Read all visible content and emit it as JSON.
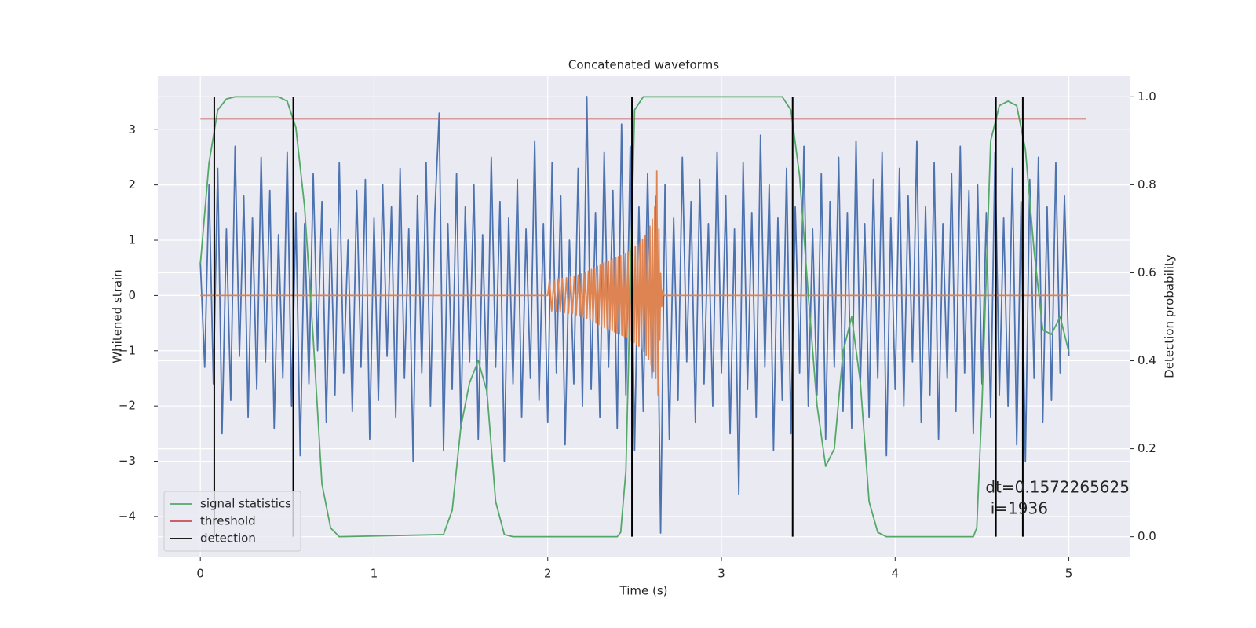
{
  "chart_data": {
    "type": "line",
    "title": "Concatenated waveforms",
    "xlabel": "Time (s)",
    "ylabel": "Whitened strain",
    "y2label": "Detection probability",
    "xlim": [
      -0.245,
      5.35
    ],
    "ylim": [
      -4.74,
      3.97
    ],
    "y2lim": [
      -0.047,
      1.047
    ],
    "xticks": [
      0,
      1,
      2,
      3,
      4,
      5
    ],
    "yticks": [
      {
        "value": -4,
        "label": "−4"
      },
      {
        "value": -3,
        "label": "−3"
      },
      {
        "value": -2,
        "label": "−2"
      },
      {
        "value": -1,
        "label": "−1"
      },
      0,
      1,
      2,
      3
    ],
    "y2ticks": [
      {
        "value": 0,
        "label": "0.0"
      },
      0.2,
      0.4,
      0.6,
      0.8,
      {
        "value": 1,
        "label": "1.0"
      }
    ],
    "grid": true,
    "legend": "lower left",
    "annotation": {
      "lines": [
        "dt=0.1572265625",
        " i=1936"
      ],
      "x": 4.52,
      "y2": 0.11
    },
    "series": [
      {
        "color": "#4c72b0",
        "x": [
          0,
          0.025,
          0.05,
          0.075,
          0.1,
          0.125,
          0.15,
          0.175,
          0.2,
          0.225,
          0.25,
          0.275,
          0.3,
          0.325,
          0.35,
          0.375,
          0.4,
          0.425,
          0.45,
          0.475,
          0.5,
          0.525,
          0.55,
          0.575,
          0.6,
          0.625,
          0.65,
          0.675,
          0.7,
          0.725,
          0.75,
          0.775,
          0.8,
          0.825,
          0.85,
          0.875,
          0.9,
          0.925,
          0.95,
          0.975,
          1,
          1.025,
          1.05,
          1.075,
          1.1,
          1.125,
          1.15,
          1.175,
          1.2,
          1.225,
          1.25,
          1.275,
          1.3,
          1.325,
          1.35,
          1.375,
          1.4,
          1.425,
          1.45,
          1.475,
          1.5,
          1.525,
          1.55,
          1.575,
          1.6,
          1.625,
          1.65,
          1.675,
          1.7,
          1.725,
          1.75,
          1.775,
          1.8,
          1.825,
          1.85,
          1.875,
          1.9,
          1.925,
          1.95,
          1.975,
          2,
          2.025,
          2.05,
          2.075,
          2.1,
          2.125,
          2.15,
          2.175,
          2.2,
          2.225,
          2.25,
          2.275,
          2.3,
          2.325,
          2.35,
          2.375,
          2.4,
          2.425,
          2.45,
          2.475,
          2.5,
          2.525,
          2.55,
          2.575,
          2.6,
          2.625,
          2.65,
          2.675,
          2.7,
          2.725,
          2.75,
          2.775,
          2.8,
          2.825,
          2.85,
          2.875,
          2.9,
          2.925,
          2.95,
          2.975,
          3,
          3.025,
          3.05,
          3.075,
          3.1,
          3.125,
          3.15,
          3.175,
          3.2,
          3.225,
          3.25,
          3.275,
          3.3,
          3.325,
          3.35,
          3.375,
          3.4,
          3.425,
          3.45,
          3.475,
          3.5,
          3.525,
          3.55,
          3.575,
          3.6,
          3.625,
          3.65,
          3.675,
          3.7,
          3.725,
          3.75,
          3.775,
          3.8,
          3.825,
          3.85,
          3.875,
          3.9,
          3.925,
          3.95,
          3.975,
          4,
          4.025,
          4.05,
          4.075,
          4.1,
          4.125,
          4.15,
          4.175,
          4.2,
          4.225,
          4.25,
          4.275,
          4.3,
          4.325,
          4.35,
          4.375,
          4.4,
          4.425,
          4.45,
          4.475,
          4.5,
          4.525,
          4.55,
          4.575,
          4.6,
          4.625,
          4.65,
          4.675,
          4.7,
          4.725,
          4.75,
          4.775,
          4.8,
          4.825,
          4.85,
          4.875,
          4.9,
          4.925,
          4.95,
          4.975,
          5
        ],
        "values": [
          0.6,
          -1.3,
          2.0,
          -1.6,
          2.3,
          -2.5,
          1.2,
          -1.9,
          2.7,
          -1.1,
          1.8,
          -2.2,
          1.4,
          -1.7,
          2.5,
          -1.2,
          1.9,
          -2.4,
          1.1,
          -1.5,
          2.6,
          -2.0,
          1.5,
          -2.9,
          1.3,
          -1.6,
          2.2,
          -1.0,
          1.7,
          -2.3,
          1.2,
          -1.8,
          2.4,
          -1.4,
          1.0,
          -2.1,
          1.9,
          -1.3,
          2.1,
          -2.6,
          1.4,
          -1.9,
          2.0,
          -1.1,
          1.6,
          -2.2,
          2.3,
          -1.5,
          1.2,
          -3.0,
          1.8,
          -1.4,
          2.4,
          -2.0,
          1.5,
          3.3,
          -2.8,
          1.3,
          -1.7,
          2.2,
          -2.4,
          1.6,
          -1.2,
          2.0,
          -2.6,
          1.1,
          -1.8,
          2.5,
          -1.3,
          1.7,
          -3.0,
          1.4,
          -1.6,
          2.1,
          -2.2,
          1.2,
          -1.5,
          2.8,
          -1.9,
          1.3,
          -2.3,
          2.4,
          -1.4,
          1.8,
          -2.7,
          1.0,
          -1.6,
          2.3,
          -2.0,
          3.6,
          -1.7,
          1.5,
          -2.2,
          2.6,
          -1.3,
          1.9,
          -2.4,
          3.1,
          -1.8,
          2.7,
          -2.8,
          1.6,
          -2.1,
          2.2,
          -1.5,
          1.8,
          -4.3,
          2.0,
          -2.6,
          1.4,
          -1.9,
          2.5,
          -1.2,
          1.7,
          -2.3,
          2.1,
          -1.6,
          1.3,
          -2.0,
          2.6,
          -1.4,
          1.8,
          -2.5,
          1.2,
          -3.6,
          2.4,
          -1.7,
          1.5,
          -2.2,
          2.9,
          -1.3,
          2.0,
          -2.8,
          1.4,
          -1.9,
          2.3,
          -2.5,
          1.6,
          -1.4,
          2.7,
          -2.0,
          1.2,
          -1.8,
          2.2,
          -2.6,
          1.7,
          -1.3,
          2.5,
          -2.1,
          1.5,
          -2.4,
          2.8,
          -1.6,
          1.3,
          -2.2,
          2.1,
          -1.5,
          2.6,
          -2.9,
          1.4,
          -1.7,
          2.3,
          -2.0,
          1.8,
          -1.2,
          2.8,
          -2.3,
          1.6,
          -1.8,
          2.4,
          -2.6,
          1.3,
          -1.5,
          2.2,
          -2.1,
          2.7,
          -1.4,
          1.9,
          -2.5,
          2.0,
          -1.6,
          1.5,
          -2.2,
          2.6,
          -1.8,
          1.4,
          -2.0,
          2.3,
          -2.7,
          1.7,
          -3.0,
          2.1,
          -1.5,
          2.5,
          -2.3,
          1.6,
          -1.9,
          2.4,
          -1.4,
          1.8,
          -1.1
        ]
      },
      {
        "color": "#dd8452",
        "x": [
          0,
          2.0,
          2.01,
          2.023,
          2.036,
          2.048,
          2.06,
          2.072,
          2.084,
          2.096,
          2.108,
          2.12,
          2.131,
          2.142,
          2.153,
          2.164,
          2.175,
          2.185,
          2.195,
          2.205,
          2.215,
          2.225,
          2.234,
          2.243,
          2.252,
          2.261,
          2.27,
          2.278,
          2.286,
          2.294,
          2.302,
          2.31,
          2.318,
          2.326,
          2.334,
          2.342,
          2.35,
          2.357,
          2.364,
          2.371,
          2.378,
          2.385,
          2.392,
          2.399,
          2.406,
          2.413,
          2.42,
          2.427,
          2.434,
          2.441,
          2.448,
          2.455,
          2.462,
          2.469,
          2.476,
          2.483,
          2.49,
          2.497,
          2.504,
          2.511,
          2.518,
          2.525,
          2.532,
          2.539,
          2.546,
          2.553,
          2.56,
          2.567,
          2.574,
          2.581,
          2.588,
          2.595,
          2.602,
          2.609,
          2.616,
          2.622,
          2.628,
          2.635,
          2.64,
          2.645,
          2.65,
          2.656,
          2.662,
          2.67,
          5.0
        ],
        "values": [
          0,
          0,
          0.28,
          -0.28,
          0.29,
          -0.29,
          0.3,
          -0.3,
          0.31,
          -0.31,
          0.32,
          -0.32,
          0.33,
          -0.33,
          0.35,
          -0.35,
          0.37,
          -0.37,
          0.39,
          -0.39,
          0.41,
          -0.41,
          0.44,
          -0.44,
          0.47,
          -0.47,
          0.5,
          -0.5,
          0.53,
          -0.53,
          0.56,
          -0.56,
          0.58,
          -0.58,
          0.6,
          -0.6,
          0.62,
          -0.62,
          0.64,
          -0.64,
          0.66,
          -0.66,
          0.68,
          -0.68,
          0.7,
          -0.7,
          0.72,
          -0.72,
          0.74,
          -0.74,
          0.76,
          -0.76,
          0.79,
          -0.79,
          0.82,
          -0.82,
          0.85,
          -0.85,
          0.88,
          -0.88,
          0.92,
          -0.92,
          0.97,
          -0.97,
          1.02,
          -1.02,
          1.08,
          -1.08,
          1.15,
          -1.15,
          1.25,
          -1.25,
          1.38,
          -1.38,
          1.6,
          -1.5,
          2.25,
          -1.8,
          1.2,
          -0.8,
          0.4,
          -0.2,
          0.1,
          0,
          0
        ]
      },
      {
        "name": "signal statistics",
        "color": "#55a868",
        "axis": "y2",
        "x": [
          0,
          0.05,
          0.1,
          0.15,
          0.2,
          0.45,
          0.5,
          0.55,
          0.6,
          0.65,
          0.7,
          0.75,
          0.8,
          1.4,
          1.45,
          1.5,
          1.55,
          1.6,
          1.65,
          1.7,
          1.75,
          1.8,
          2.4,
          2.42,
          2.45,
          2.5,
          2.55,
          3.35,
          3.4,
          3.45,
          3.5,
          3.55,
          3.6,
          3.65,
          3.7,
          3.75,
          3.8,
          3.85,
          3.9,
          3.95,
          4.45,
          4.47,
          4.5,
          4.55,
          4.6,
          4.65,
          4.7,
          4.75,
          4.8,
          4.85,
          4.9,
          4.95,
          5.0
        ],
        "values": [
          0.62,
          0.85,
          0.97,
          0.995,
          1.0,
          1.0,
          0.99,
          0.93,
          0.75,
          0.45,
          0.12,
          0.02,
          0.0,
          0.005,
          0.06,
          0.25,
          0.35,
          0.4,
          0.33,
          0.08,
          0.005,
          0.0,
          0.0,
          0.01,
          0.15,
          0.97,
          1.0,
          1.0,
          0.97,
          0.82,
          0.55,
          0.3,
          0.16,
          0.2,
          0.42,
          0.5,
          0.35,
          0.08,
          0.01,
          0.0,
          0.0,
          0.02,
          0.3,
          0.9,
          0.98,
          0.99,
          0.98,
          0.88,
          0.65,
          0.47,
          0.46,
          0.5,
          0.42
        ]
      },
      {
        "name": "threshold",
        "color": "#c44e52",
        "axis": "y2",
        "x": [
          0,
          5.1
        ],
        "values": [
          0.95,
          0.95
        ]
      },
      {
        "name": "detection",
        "color": "#000000",
        "axis": "y2",
        "x": [
          0.08,
          0.535,
          2.485,
          3.41,
          4.58,
          4.735
        ],
        "span": [
          0,
          1
        ]
      }
    ]
  }
}
